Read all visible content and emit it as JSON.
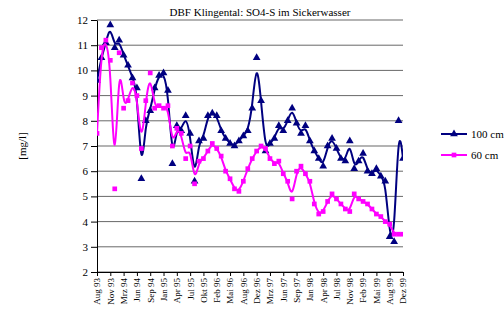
{
  "chart_data": {
    "type": "line",
    "title": "DBF Klingental: SO4-S im Sickerwasser",
    "ylabel": "[mg/l]",
    "categories": [
      "Aug 93",
      null,
      null,
      "Nov 93",
      null,
      null,
      "Mrz 94",
      null,
      null,
      "Jun 94",
      null,
      null,
      "Sep 94",
      null,
      null,
      "Jan 95",
      null,
      null,
      "Apr 95",
      null,
      null,
      "Jul 95",
      null,
      null,
      "Okt 95",
      null,
      null,
      "Feb 96",
      null,
      null,
      "Mai 96",
      null,
      null,
      "Aug 96",
      null,
      null,
      "Dez 96",
      null,
      null,
      "Mrz 97",
      null,
      null,
      "Jun 97",
      null,
      null,
      "Sep 97",
      null,
      null,
      "Jan 98",
      null,
      null,
      "Apr 98",
      null,
      null,
      "Jul 98",
      null,
      null,
      "Nov 98",
      null,
      null,
      "Feb 99",
      null,
      null,
      "Mai 99",
      null,
      null,
      "Aug 99",
      null,
      null,
      "Dez 99"
    ],
    "series": [
      {
        "name": "100 cm",
        "color": "#000080",
        "marker": "triangle",
        "values": [
          9.6,
          10.5,
          11.1,
          11.8,
          10.9,
          11.2,
          10.6,
          10.2,
          9.7,
          9.3,
          5.7,
          8.0,
          8.4,
          9.3,
          9.8,
          9.9,
          9.2,
          6.3,
          7.8,
          7.6,
          8.2,
          7.5,
          5.6,
          7.2,
          7.3,
          8.2,
          8.3,
          8.2,
          7.6,
          7.3,
          7.1,
          7.0,
          7.2,
          7.4,
          7.6,
          8.5,
          10.5,
          8.8,
          6.8,
          7.1,
          7.3,
          7.8,
          7.6,
          8.0,
          8.5,
          7.9,
          7.5,
          7.8,
          7.2,
          6.8,
          6.5,
          6.2,
          7.0,
          7.3,
          6.9,
          6.5,
          6.4,
          7.2,
          6.1,
          6.4,
          6.7,
          6.0,
          5.9,
          6.1,
          5.8,
          5.6,
          3.4,
          3.2,
          8.0,
          6.5
        ]
      },
      {
        "name": "60 cm",
        "color": "#ff00ff",
        "marker": "square",
        "values": [
          7.5,
          10.9,
          11.2,
          10.4,
          5.3,
          10.7,
          8.5,
          8.8,
          9.5,
          9.0,
          6.9,
          8.8,
          9.9,
          8.5,
          8.6,
          8.5,
          8.6,
          7.0,
          7.7,
          7.5,
          6.5,
          7.0,
          5.5,
          6.4,
          6.5,
          6.8,
          7.1,
          6.9,
          6.6,
          6.0,
          5.7,
          5.3,
          5.2,
          5.6,
          6.1,
          6.5,
          6.8,
          7.0,
          6.9,
          6.5,
          6.3,
          6.4,
          5.9,
          5.6,
          4.9,
          6.0,
          6.2,
          5.9,
          5.6,
          4.7,
          4.3,
          4.4,
          4.8,
          5.1,
          4.9,
          4.7,
          4.5,
          4.4,
          5.1,
          4.9,
          4.8,
          4.7,
          4.5,
          4.3,
          4.2,
          4.0,
          3.9,
          3.5,
          3.5,
          3.5
        ]
      }
    ],
    "ylim": [
      2,
      12
    ],
    "yticks": [
      2,
      3,
      4,
      5,
      6,
      7,
      8,
      9,
      10,
      11,
      12
    ],
    "grid": true,
    "legend": "right"
  }
}
